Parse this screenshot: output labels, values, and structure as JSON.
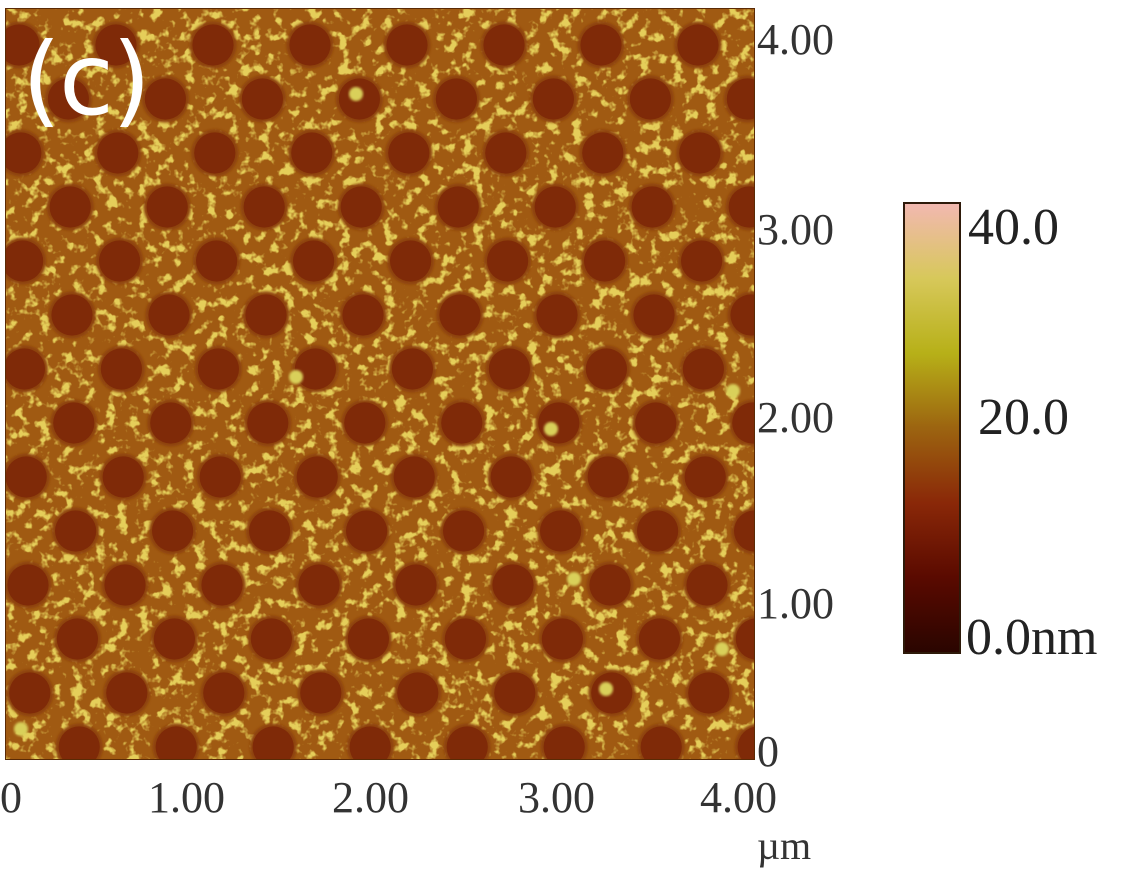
{
  "panel_label": "(c)",
  "afm_image": {
    "description_name": "afm-height-map",
    "background_color": "#a05a12",
    "hole_color": "#7f2a08",
    "speckle_color": "#c0a020",
    "hole_diameter_um": 0.22
  },
  "y_axis": {
    "ticks": [
      "4.00",
      "3.00",
      "2.00",
      "1.00",
      "0"
    ]
  },
  "x_axis": {
    "ticks": [
      "0",
      "1.00",
      "2.00",
      "3.00",
      "4.00"
    ],
    "unit": "µm"
  },
  "colorbar": {
    "max_label": "40.0",
    "mid_label": "20.0",
    "min_label": "0.0nm",
    "stops": [
      "#f2b8b0",
      "#d7c85a",
      "#b7b018",
      "#9c6410",
      "#8a2808",
      "#5a0a00",
      "#2a0500"
    ]
  }
}
